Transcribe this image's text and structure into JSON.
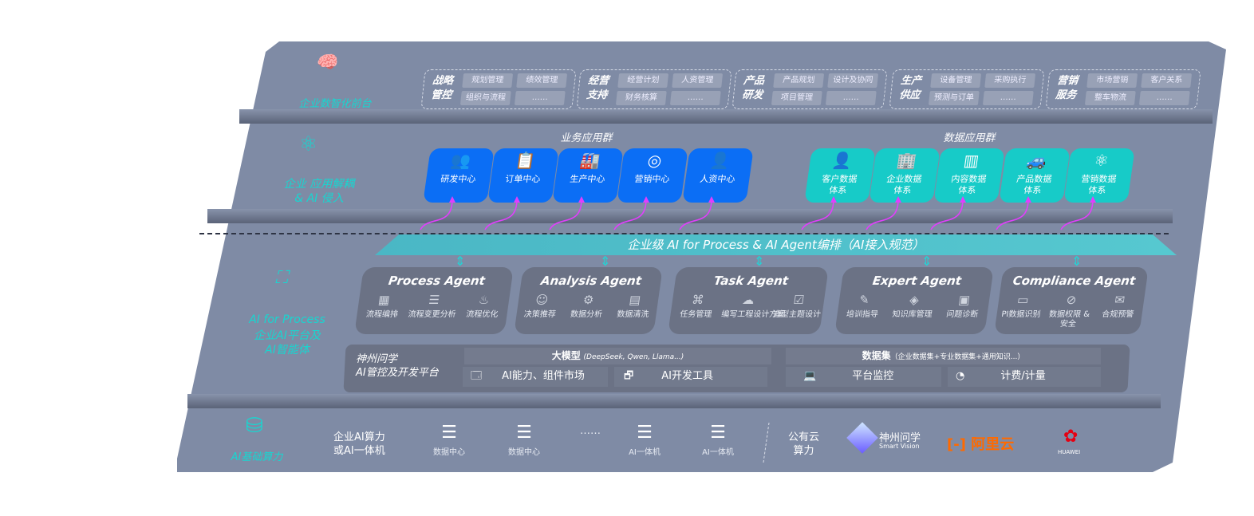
{
  "layers": {
    "front": "企业数智化前台",
    "app": "企业 应用解耦\n& AI 侵入",
    "ai_title": "AI for Process",
    "ai_sub": "企业AI平台及\nAI智能体",
    "infra": "AI基础算力"
  },
  "front_groups": [
    {
      "title": "战略\n管控",
      "items": [
        "规划管理",
        "绩效管理",
        "组织与流程",
        "……"
      ]
    },
    {
      "title": "经营\n支持",
      "items": [
        "经营计划",
        "人资管理",
        "财务核算",
        "……"
      ]
    },
    {
      "title": "产品\n研发",
      "items": [
        "产品规划",
        "设计及协同",
        "项目管理",
        "……"
      ]
    },
    {
      "title": "生产\n供应",
      "items": [
        "设备管理",
        "采购执行",
        "预测与订单",
        "……"
      ]
    },
    {
      "title": "营销\n服务",
      "items": [
        "市场营销",
        "客户关系",
        "整车物流",
        "……"
      ]
    }
  ],
  "business_apps": {
    "title": "业务应用群",
    "items": [
      {
        "label": "研发中心",
        "icon": "people-icon"
      },
      {
        "label": "订单中心",
        "icon": "clipboard-icon"
      },
      {
        "label": "生产中心",
        "icon": "factory-icon"
      },
      {
        "label": "营销中心",
        "icon": "target-icon"
      },
      {
        "label": "人资中心",
        "icon": "hr-icon"
      }
    ]
  },
  "data_apps": {
    "title": "数据应用群",
    "items": [
      {
        "label": "客户数据\n体系",
        "icon": "user-icon"
      },
      {
        "label": "企业数据\n体系",
        "icon": "building-icon"
      },
      {
        "label": "内容数据\n体系",
        "icon": "books-icon"
      },
      {
        "label": "产品数据\n体系",
        "icon": "car-icon"
      },
      {
        "label": "营销数据\n体系",
        "icon": "atom-icon"
      }
    ]
  },
  "orchestration": "企业级 AI for Process & AI Agent编排（AI接入规范）",
  "agents": [
    {
      "title": "Process Agent",
      "items": [
        "流程编排",
        "流程变更分析",
        "流程优化"
      ]
    },
    {
      "title": "Analysis Agent",
      "items": [
        "决策推荐",
        "数据分析",
        "数据清洗"
      ]
    },
    {
      "title": "Task Agent",
      "items": [
        "任务管理",
        "编写工程设计方案",
        "造型主题设计"
      ]
    },
    {
      "title": "Expert Agent",
      "items": [
        "培训指导",
        "知识库管理",
        "问题诊断"
      ]
    },
    {
      "title": "Compliance Agent",
      "items": [
        "PI数据识别",
        "数据权限 &\n安全",
        "合规预警"
      ]
    }
  ],
  "platform": {
    "name": "神州问学\nAI管控及开发平台",
    "llm": "大模型",
    "llm_note": "(DeepSeek, Qwen, Llama...)",
    "dataset": "数据集",
    "dataset_note": "（企业数据集+专业数据集+通用知识...）",
    "tools": [
      "AI能力、组件市场",
      "AI开发工具",
      "平台监控",
      "计费/计量"
    ]
  },
  "infra": {
    "enterprise": "企业AI算力\n或AI一体机",
    "items": [
      "数据中心",
      "数据中心",
      "……",
      "AI一体机",
      "AI一体机"
    ],
    "public": "公有云\n算力",
    "vendors": {
      "smartvision": "神州问学",
      "smartvision_en": "Smart Vision",
      "aliyun": "阿里云",
      "huawei": "HUAWEI"
    }
  },
  "colors": {
    "panel": "#7f8ba5",
    "business": "#0b6ef5",
    "data": "#17cbc8",
    "accent": "#18d6d0",
    "arrow": "#e040fb",
    "aliyun": "#ff6a00",
    "huawei": "#e60012"
  }
}
